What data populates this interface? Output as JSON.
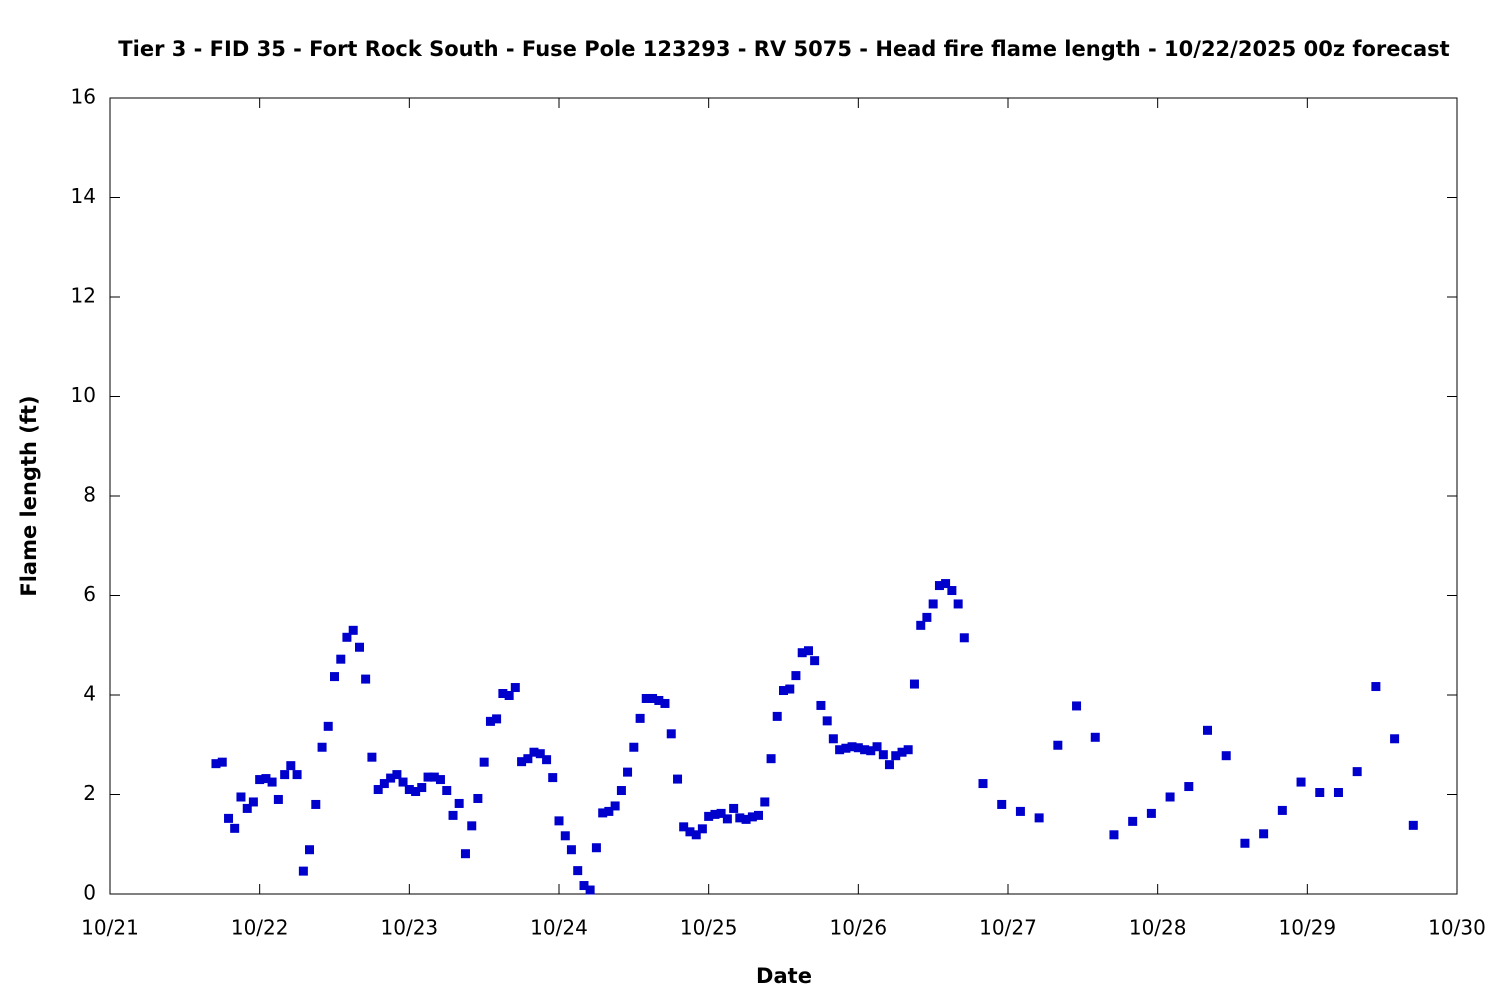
{
  "chart_data": {
    "type": "scatter",
    "title": "Tier 3 - FID 35 - Fort Rock South - Fuse Pole 123293 - RV 5075 - Head fire flame length - 10/22/2025 00z forecast",
    "x_label": "Date",
    "y_label": "Flame length (ft)",
    "color": "#0000cc",
    "x": [
      21.708,
      21.75,
      21.792,
      21.833,
      21.875,
      21.917,
      21.958,
      22,
      22.042,
      22.083,
      22.125,
      22.167,
      22.208,
      22.25,
      22.292,
      22.333,
      22.375,
      22.417,
      22.458,
      22.5,
      22.542,
      22.583,
      22.625,
      22.667,
      22.708,
      22.75,
      22.792,
      22.833,
      22.875,
      22.917,
      22.958,
      23,
      23.042,
      23.083,
      23.125,
      23.167,
      23.208,
      23.25,
      23.292,
      23.333,
      23.375,
      23.417,
      23.458,
      23.5,
      23.542,
      23.583,
      23.625,
      23.667,
      23.708,
      23.75,
      23.792,
      23.833,
      23.875,
      23.917,
      23.958,
      24,
      24.042,
      24.083,
      24.125,
      24.167,
      24.208,
      24.25,
      24.292,
      24.333,
      24.375,
      24.417,
      24.458,
      24.5,
      24.542,
      24.583,
      24.625,
      24.667,
      24.708,
      24.75,
      24.792,
      24.833,
      24.875,
      24.917,
      24.958,
      25,
      25.042,
      25.083,
      25.125,
      25.167,
      25.208,
      25.25,
      25.292,
      25.333,
      25.375,
      25.417,
      25.458,
      25.5,
      25.542,
      25.583,
      25.625,
      25.667,
      25.708,
      25.75,
      25.792,
      25.833,
      25.875,
      25.917,
      25.958,
      26,
      26.042,
      26.083,
      26.125,
      26.167,
      26.208,
      26.25,
      26.292,
      26.333,
      26.375,
      26.417,
      26.458,
      26.5,
      26.542,
      26.583,
      26.625,
      26.667,
      26.708,
      26.833,
      26.958,
      27.083,
      27.208,
      27.333,
      27.458,
      27.583,
      27.708,
      27.833,
      27.958,
      28.083,
      28.208,
      28.333,
      28.458,
      28.583,
      28.708,
      28.833,
      28.958,
      29.083,
      29.208,
      29.333,
      29.458,
      29.583,
      29.708
    ],
    "values": [
      2.62,
      2.65,
      1.52,
      1.32,
      1.95,
      1.72,
      1.85,
      2.3,
      2.32,
      2.25,
      1.9,
      2.4,
      2.58,
      2.4,
      0.46,
      0.89,
      1.8,
      2.95,
      3.37,
      4.37,
      4.72,
      5.16,
      5.3,
      4.96,
      4.32,
      2.75,
      2.1,
      2.22,
      2.33,
      2.4,
      2.25,
      2.1,
      2.06,
      2.14,
      2.35,
      2.35,
      2.3,
      2.08,
      1.58,
      1.82,
      0.81,
      1.37,
      1.92,
      2.65,
      3.47,
      3.52,
      4.03,
      3.99,
      4.15,
      2.66,
      2.72,
      2.85,
      2.82,
      2.7,
      2.34,
      1.47,
      1.17,
      0.89,
      0.47,
      0.17,
      0.08,
      0.93,
      1.63,
      1.66,
      1.77,
      2.08,
      2.45,
      2.95,
      3.53,
      3.93,
      3.93,
      3.89,
      3.83,
      3.22,
      2.31,
      1.35,
      1.25,
      1.19,
      1.31,
      1.56,
      1.6,
      1.62,
      1.51,
      1.72,
      1.53,
      1.5,
      1.55,
      1.58,
      1.85,
      2.72,
      3.57,
      4.09,
      4.12,
      4.39,
      4.85,
      4.89,
      4.69,
      3.79,
      3.48,
      3.12,
      2.9,
      2.93,
      2.96,
      2.94,
      2.9,
      2.88,
      2.96,
      2.8,
      2.6,
      2.78,
      2.85,
      2.9,
      4.22,
      5.4,
      5.56,
      5.83,
      6.2,
      6.24,
      6.1,
      5.83,
      5.15,
      2.22,
      1.8,
      1.66,
      1.53,
      2.99,
      3.78,
      3.15,
      1.19,
      1.46,
      1.62,
      1.95,
      2.16,
      3.29,
      2.78,
      1.02,
      1.21,
      1.68,
      2.25,
      2.04,
      2.04,
      2.46,
      4.17,
      3.12,
      1.38
    ],
    "xlim": [
      21,
      30
    ],
    "xticks": [
      {
        "value": 21,
        "label": "10/21"
      },
      {
        "value": 22,
        "label": "10/22"
      },
      {
        "value": 23,
        "label": "10/23"
      },
      {
        "value": 24,
        "label": "10/24"
      },
      {
        "value": 25,
        "label": "10/25"
      },
      {
        "value": 26,
        "label": "10/26"
      },
      {
        "value": 27,
        "label": "10/27"
      },
      {
        "value": 28,
        "label": "10/28"
      },
      {
        "value": 29,
        "label": "10/29"
      },
      {
        "value": 30,
        "label": "10/30"
      }
    ],
    "ylim": [
      0,
      16
    ],
    "yticks": [
      0,
      2,
      4,
      6,
      8,
      10,
      12,
      14,
      16
    ],
    "grid": false
  }
}
